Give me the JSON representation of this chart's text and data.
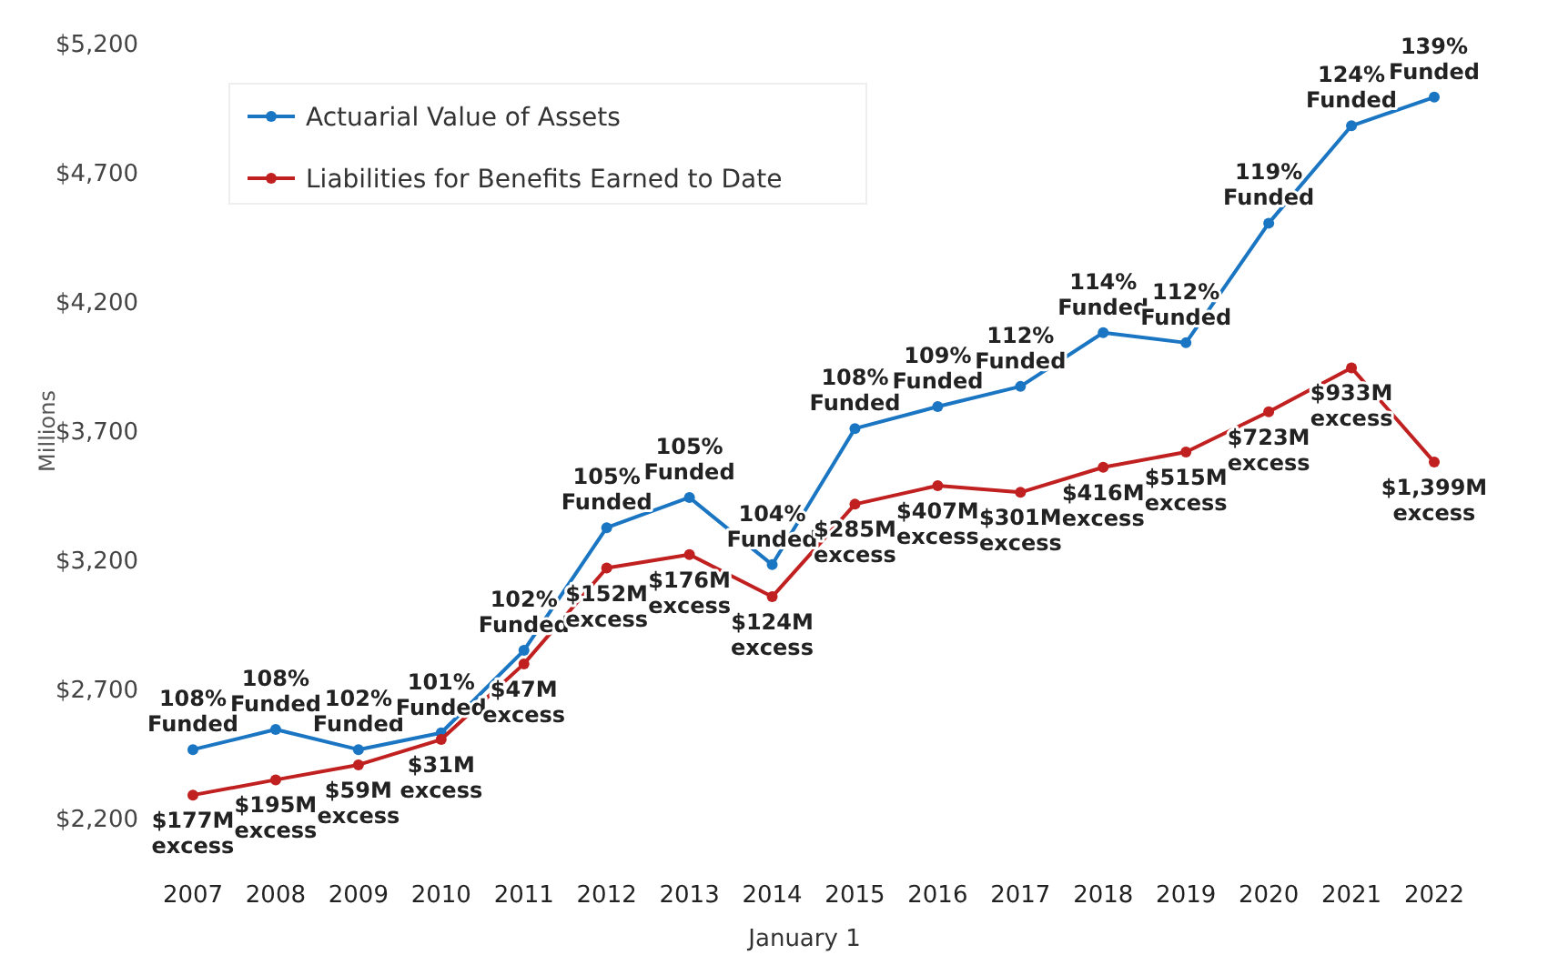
{
  "chart_data": {
    "type": "line",
    "xlabel": "January 1",
    "ylabel": "Millions",
    "categories": [
      "2007",
      "2008",
      "2009",
      "2010",
      "2011",
      "2012",
      "2013",
      "2014",
      "2015",
      "2016",
      "2017",
      "2018",
      "2019",
      "2020",
      "2021",
      "2022"
    ],
    "series": [
      {
        "name": "Actuarial Value of Assets",
        "color": "#1a75c2",
        "values": [
          2467,
          2545,
          2467,
          2532,
          2851,
          3326,
          3443,
          3183,
          3710,
          3795,
          3873,
          4081,
          4042,
          4505,
          4882,
          4993
        ]
      },
      {
        "name": "Liabilities for Benefits Earned to Date",
        "color": "#c0201f",
        "values": [
          2291,
          2350,
          2408,
          2506,
          2799,
          3170,
          3222,
          3059,
          3417,
          3489,
          3463,
          3560,
          3619,
          3775,
          3945,
          3580
        ]
      }
    ],
    "ylim": [
      2200,
      5200
    ],
    "yticks": [
      {
        "value": 2200,
        "label": "$2,200"
      },
      {
        "value": 2700,
        "label": "$2,700"
      },
      {
        "value": 3200,
        "label": "$3,200"
      },
      {
        "value": 3700,
        "label": "$3,700"
      },
      {
        "value": 4200,
        "label": "$4,200"
      },
      {
        "value": 4700,
        "label": "$4,700"
      },
      {
        "value": 5200,
        "label": "$5,200"
      }
    ],
    "marker": "circle",
    "line_style": "solid",
    "grid": false,
    "legend": "top left",
    "annotations": [
      {
        "text": "108% Funded",
        "x": "2007",
        "y": 2467
      },
      {
        "text": "108% Funded",
        "x": "2008",
        "y": 2545
      },
      {
        "text": "102% Funded",
        "x": "2009",
        "y": 2467
      },
      {
        "text": "101% Funded",
        "x": "2010",
        "y": 2532
      },
      {
        "text": "102% Funded",
        "x": "2011",
        "y": 2851
      },
      {
        "text": "105% Funded",
        "x": "2012",
        "y": 3326
      },
      {
        "text": "105% Funded",
        "x": "2013",
        "y": 3443
      },
      {
        "text": "104% Funded",
        "x": "2014",
        "y": 3183
      },
      {
        "text": "108% Funded",
        "x": "2015",
        "y": 3710
      },
      {
        "text": "109% Funded",
        "x": "2016",
        "y": 3795
      },
      {
        "text": "112% Funded",
        "x": "2017",
        "y": 3873
      },
      {
        "text": "114% Funded",
        "x": "2018",
        "y": 4081
      },
      {
        "text": "112% Funded",
        "x": "2019",
        "y": 4042
      },
      {
        "text": "119% Funded",
        "x": "2020",
        "y": 4505
      },
      {
        "text": "124% Funded",
        "x": "2021",
        "y": 4882
      },
      {
        "text": "139% Funded",
        "x": "2022",
        "y": 4993
      },
      {
        "text": "$177M excess",
        "x": "2007",
        "y": 2291
      },
      {
        "text": "$195M excess",
        "x": "2008",
        "y": 2350
      },
      {
        "text": "$59M excess",
        "x": "2009",
        "y": 2408
      },
      {
        "text": "$31M excess",
        "x": "2010",
        "y": 2506
      },
      {
        "text": "$47M excess",
        "x": "2011",
        "y": 2799
      },
      {
        "text": "$152M excess",
        "x": "2012",
        "y": 3170
      },
      {
        "text": "$176M excess",
        "x": "2013",
        "y": 3222
      },
      {
        "text": "$124M excess",
        "x": "2014",
        "y": 3059
      },
      {
        "text": "$285M excess",
        "x": "2015",
        "y": 3417
      },
      {
        "text": "$407M excess",
        "x": "2016",
        "y": 3489
      },
      {
        "text": "$301M excess",
        "x": "2017",
        "y": 3463
      },
      {
        "text": "$416M excess",
        "x": "2018",
        "y": 3560
      },
      {
        "text": "$515M excess",
        "x": "2019",
        "y": 3619
      },
      {
        "text": "$723M excess",
        "x": "2020",
        "y": 3775
      },
      {
        "text": "$933M excess",
        "x": "2021",
        "y": 3945
      },
      {
        "text": "$1,399M excess",
        "x": "2022",
        "y": 3580
      }
    ]
  }
}
